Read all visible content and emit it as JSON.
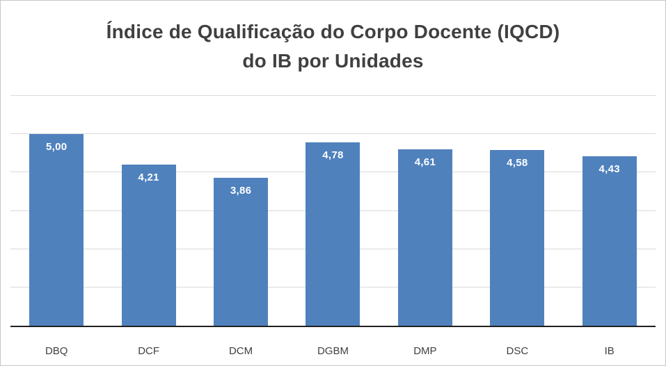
{
  "title": {
    "line1": "Índice de Qualificação do Corpo Docente (IQCD)",
    "line2": "do IB por Unidades"
  },
  "chart_data": {
    "type": "bar",
    "title": "Índice de Qualificação do Corpo Docente (IQCD) do IB por Unidades",
    "categories": [
      "DBQ",
      "DCF",
      "DCM",
      "DGBM",
      "DMP",
      "DSC",
      "IB"
    ],
    "values": [
      5.0,
      4.21,
      3.86,
      4.78,
      4.61,
      4.58,
      4.43
    ],
    "value_labels": [
      "5,00",
      "4,21",
      "3,86",
      "4,78",
      "4,61",
      "4,58",
      "4,43"
    ],
    "xlabel": "",
    "ylabel": "",
    "ylim": [
      0,
      6
    ],
    "gridline_step": 1,
    "grid": true,
    "legend": false
  },
  "colors": {
    "bar_fill": "#4F81BD",
    "value_label": "#FFFFFF",
    "title_text": "#404040",
    "axis_label_text": "#404040",
    "gridline": "#D9D9D9",
    "axis_line": "#1F1F1F",
    "background": "#FFFFFF",
    "border": "#C6C6C6"
  }
}
